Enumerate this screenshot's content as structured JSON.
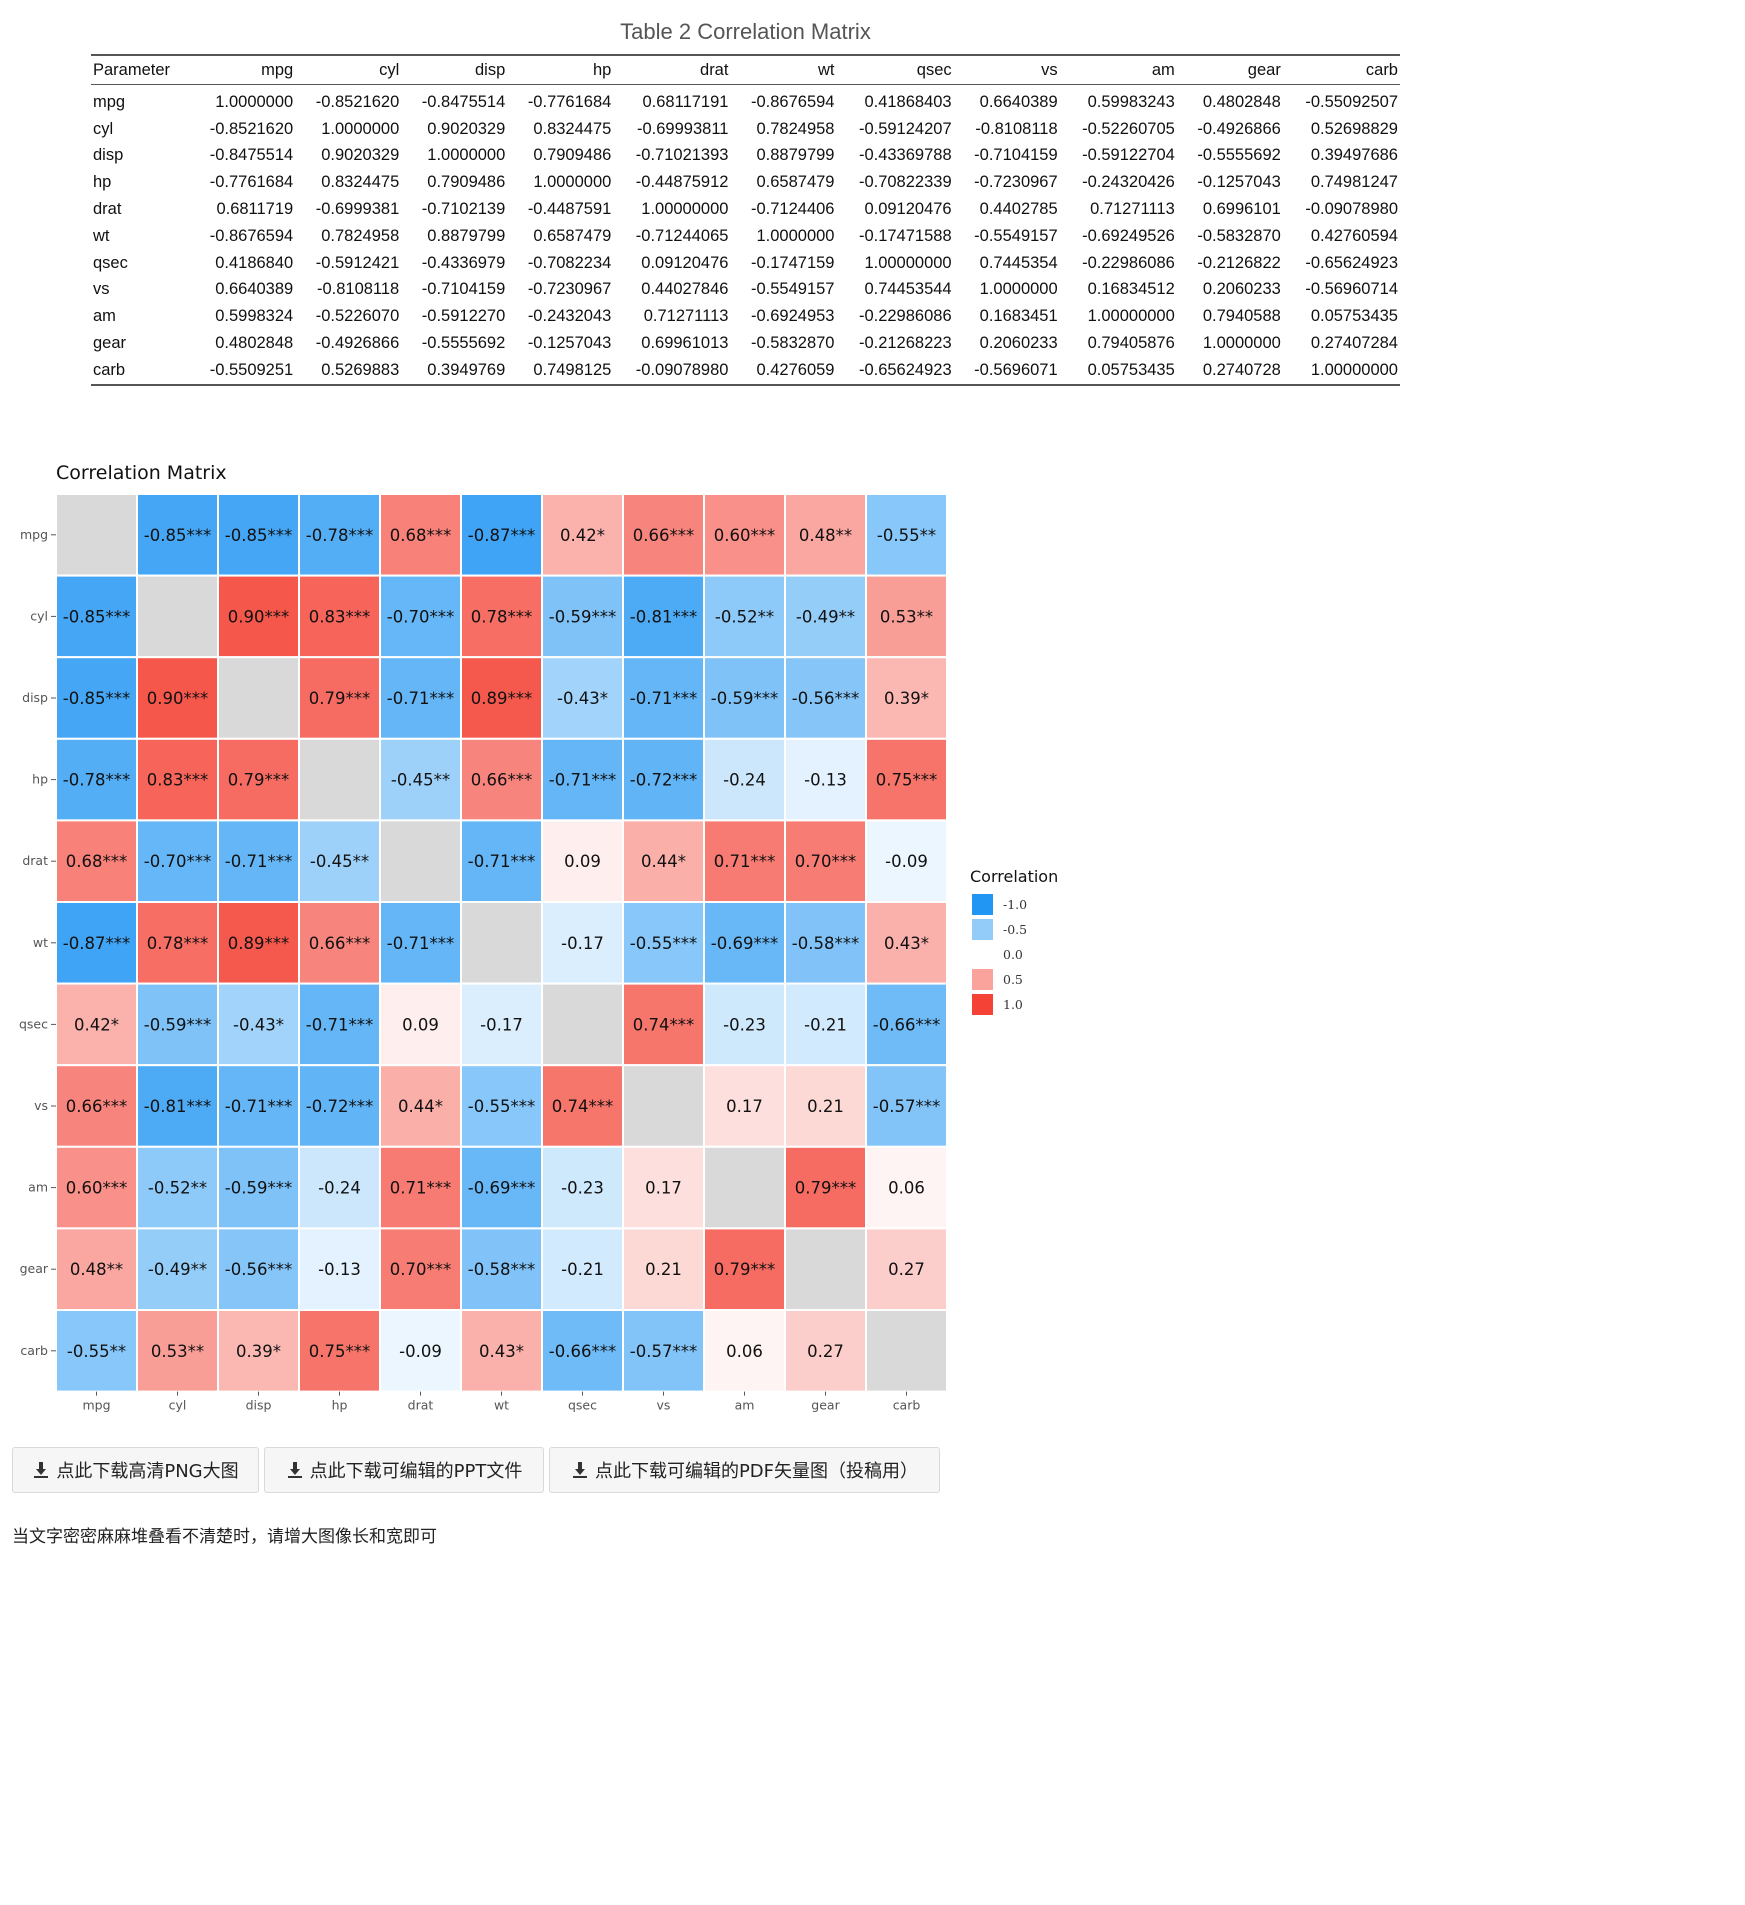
{
  "table": {
    "title": "Table 2 Correlation Matrix",
    "headers": [
      "Parameter",
      "mpg",
      "cyl",
      "disp",
      "hp",
      "drat",
      "wt",
      "qsec",
      "vs",
      "am",
      "gear",
      "carb"
    ],
    "rows": [
      [
        "mpg",
        "1.0000000",
        "-0.8521620",
        "-0.8475514",
        "-0.7761684",
        "0.68117191",
        "-0.8676594",
        "0.41868403",
        "0.6640389",
        "0.59983243",
        "0.4802848",
        "-0.55092507"
      ],
      [
        "cyl",
        "-0.8521620",
        "1.0000000",
        "0.9020329",
        "0.8324475",
        "-0.69993811",
        "0.7824958",
        "-0.59124207",
        "-0.8108118",
        "-0.52260705",
        "-0.4926866",
        "0.52698829"
      ],
      [
        "disp",
        "-0.8475514",
        "0.9020329",
        "1.0000000",
        "0.7909486",
        "-0.71021393",
        "0.8879799",
        "-0.43369788",
        "-0.7104159",
        "-0.59122704",
        "-0.5555692",
        "0.39497686"
      ],
      [
        "hp",
        "-0.7761684",
        "0.8324475",
        "0.7909486",
        "1.0000000",
        "-0.44875912",
        "0.6587479",
        "-0.70822339",
        "-0.7230967",
        "-0.24320426",
        "-0.1257043",
        "0.74981247"
      ],
      [
        "drat",
        "0.6811719",
        "-0.6999381",
        "-0.7102139",
        "-0.4487591",
        "1.00000000",
        "-0.7124406",
        "0.09120476",
        "0.4402785",
        "0.71271113",
        "0.6996101",
        "-0.09078980"
      ],
      [
        "wt",
        "-0.8676594",
        "0.7824958",
        "0.8879799",
        "0.6587479",
        "-0.71244065",
        "1.0000000",
        "-0.17471588",
        "-0.5549157",
        "-0.69249526",
        "-0.5832870",
        "0.42760594"
      ],
      [
        "qsec",
        "0.4186840",
        "-0.5912421",
        "-0.4336979",
        "-0.7082234",
        "0.09120476",
        "-0.1747159",
        "1.00000000",
        "0.7445354",
        "-0.22986086",
        "-0.2126822",
        "-0.65624923"
      ],
      [
        "vs",
        "0.6640389",
        "-0.8108118",
        "-0.7104159",
        "-0.7230967",
        "0.44027846",
        "-0.5549157",
        "0.74453544",
        "1.0000000",
        "0.16834512",
        "0.2060233",
        "-0.56960714"
      ],
      [
        "am",
        "0.5998324",
        "-0.5226070",
        "-0.5912270",
        "-0.2432043",
        "0.71271113",
        "-0.6924953",
        "-0.22986086",
        "0.1683451",
        "1.00000000",
        "0.7940588",
        "0.05753435"
      ],
      [
        "gear",
        "0.4802848",
        "-0.4926866",
        "-0.5555692",
        "-0.1257043",
        "0.69961013",
        "-0.5832870",
        "-0.21268223",
        "0.2060233",
        "0.79405876",
        "1.0000000",
        "0.27407284"
      ],
      [
        "carb",
        "-0.5509251",
        "0.5269883",
        "0.3949769",
        "0.7498125",
        "-0.09078980",
        "0.4276059",
        "-0.65624923",
        "-0.5696071",
        "0.05753435",
        "0.2740728",
        "1.00000000"
      ]
    ]
  },
  "chart_data": {
    "type": "heatmap",
    "title": "Correlation Matrix",
    "variables": [
      "mpg",
      "cyl",
      "disp",
      "hp",
      "drat",
      "wt",
      "qsec",
      "vs",
      "am",
      "gear",
      "carb"
    ],
    "values": [
      [
        1.0,
        -0.85,
        -0.85,
        -0.78,
        0.68,
        -0.87,
        0.42,
        0.66,
        0.6,
        0.48,
        -0.55
      ],
      [
        -0.85,
        1.0,
        0.9,
        0.83,
        -0.7,
        0.78,
        -0.59,
        -0.81,
        -0.52,
        -0.49,
        0.53
      ],
      [
        -0.85,
        0.9,
        1.0,
        0.79,
        -0.71,
        0.89,
        -0.43,
        -0.71,
        -0.59,
        -0.56,
        0.39
      ],
      [
        -0.78,
        0.83,
        0.79,
        1.0,
        -0.45,
        0.66,
        -0.71,
        -0.72,
        -0.24,
        -0.13,
        0.75
      ],
      [
        0.68,
        -0.7,
        -0.71,
        -0.45,
        1.0,
        -0.71,
        0.09,
        0.44,
        0.71,
        0.7,
        -0.09
      ],
      [
        -0.87,
        0.78,
        0.89,
        0.66,
        -0.71,
        1.0,
        -0.17,
        -0.55,
        -0.69,
        -0.58,
        0.43
      ],
      [
        0.42,
        -0.59,
        -0.43,
        -0.71,
        0.09,
        -0.17,
        1.0,
        0.74,
        -0.23,
        -0.21,
        -0.66
      ],
      [
        0.66,
        -0.81,
        -0.71,
        -0.72,
        0.44,
        -0.55,
        0.74,
        1.0,
        0.17,
        0.21,
        -0.57
      ],
      [
        0.6,
        -0.52,
        -0.59,
        -0.24,
        0.71,
        -0.69,
        -0.23,
        0.17,
        1.0,
        0.79,
        0.06
      ],
      [
        0.48,
        -0.49,
        -0.56,
        -0.13,
        0.7,
        -0.58,
        -0.21,
        0.21,
        0.79,
        1.0,
        0.27
      ],
      [
        -0.55,
        0.53,
        0.39,
        0.75,
        -0.09,
        0.43,
        -0.66,
        -0.57,
        0.06,
        0.27,
        1.0
      ]
    ],
    "labels": [
      [
        "",
        "-0.85***",
        "-0.85***",
        "-0.78***",
        "0.68***",
        "-0.87***",
        "0.42*",
        "0.66***",
        "0.60***",
        "0.48**",
        "-0.55**"
      ],
      [
        "-0.85***",
        "",
        "0.90***",
        "0.83***",
        "-0.70***",
        "0.78***",
        "-0.59***",
        "-0.81***",
        "-0.52**",
        "-0.49**",
        "0.53**"
      ],
      [
        "-0.85***",
        "0.90***",
        "",
        "0.79***",
        "-0.71***",
        "0.89***",
        "-0.43*",
        "-0.71***",
        "-0.59***",
        "-0.56***",
        "0.39*"
      ],
      [
        "-0.78***",
        "0.83***",
        "0.79***",
        "",
        "-0.45**",
        "0.66***",
        "-0.71***",
        "-0.72***",
        "-0.24",
        "-0.13",
        "0.75***"
      ],
      [
        "0.68***",
        "-0.70***",
        "-0.71***",
        "-0.45**",
        "",
        "-0.71***",
        "0.09",
        "0.44*",
        "0.71***",
        "0.70***",
        "-0.09"
      ],
      [
        "-0.87***",
        "0.78***",
        "0.89***",
        "0.66***",
        "-0.71***",
        "",
        "-0.17",
        "-0.55***",
        "-0.69***",
        "-0.58***",
        "0.43*"
      ],
      [
        "0.42*",
        "-0.59***",
        "-0.43*",
        "-0.71***",
        "0.09",
        "-0.17",
        "",
        "0.74***",
        "-0.23",
        "-0.21",
        "-0.66***"
      ],
      [
        "0.66***",
        "-0.81***",
        "-0.71***",
        "-0.72***",
        "0.44*",
        "-0.55***",
        "0.74***",
        "",
        "0.17",
        "0.21",
        "-0.57***"
      ],
      [
        "0.60***",
        "-0.52**",
        "-0.59***",
        "-0.24",
        "0.71***",
        "-0.69***",
        "-0.23",
        "0.17",
        "",
        "0.79***",
        "0.06"
      ],
      [
        "0.48**",
        "-0.49**",
        "-0.56***",
        "-0.13",
        "0.70***",
        "-0.58***",
        "-0.21",
        "0.21",
        "0.79***",
        "",
        "0.27"
      ],
      [
        "-0.55**",
        "0.53**",
        "0.39*",
        "0.75***",
        "-0.09",
        "0.43*",
        "-0.66***",
        "-0.57***",
        "0.06",
        "0.27",
        ""
      ]
    ],
    "diagonal_color": "#d9d9d9",
    "legend": {
      "title": "Correlation",
      "position": "right",
      "breaks": [
        "-1.0",
        "-0.5",
        "0.0",
        "0.5",
        "1.0"
      ],
      "break_values": [
        -1.0,
        -0.5,
        0.0,
        0.5,
        1.0
      ]
    },
    "colors": {
      "negative": "#2196F3",
      "mid": "#FFFFFF",
      "positive": "#F44336"
    }
  },
  "buttons": {
    "png": "点此下载高清PNG大图",
    "ppt": "点此下载可编辑的PPT文件",
    "pdf": "点此下载可编辑的PDF矢量图（投稿用）"
  },
  "note": "当文字密密麻麻堆叠看不清楚时，请增大图像长和宽即可"
}
